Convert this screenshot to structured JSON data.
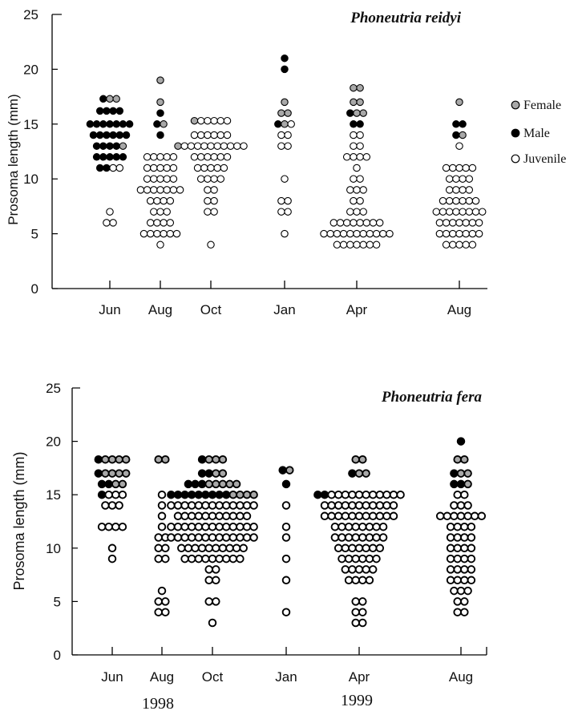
{
  "colors": {
    "female": "#a8a8a8",
    "male": "#000000",
    "juvenile": "#ffffff",
    "stroke": "#000000"
  },
  "legend": {
    "female": "Female",
    "male": "Male",
    "juvenile": "Juvenile"
  },
  "years": [
    "1998",
    "1999"
  ],
  "chart_data": [
    {
      "type": "scatter",
      "title": "Phoneutria reidyi",
      "ylabel": "Prosoma length (mm)",
      "ylim": [
        0,
        25
      ],
      "yticks": [
        0,
        5,
        10,
        15,
        20,
        25
      ],
      "categories": [
        "Jun",
        "Aug",
        "Oct",
        "Jan",
        "Apr",
        "Aug"
      ],
      "legend_position": "right",
      "groups": [
        {
          "category": "Jun",
          "rows": [
            {
              "y": 17.3,
              "f": 2,
              "m": 1,
              "j": 0
            },
            {
              "y": 16.2,
              "f": 0,
              "m": 4,
              "j": 0
            },
            {
              "y": 15.0,
              "f": 0,
              "m": 7,
              "j": 0
            },
            {
              "y": 14.0,
              "f": 0,
              "m": 6,
              "j": 0
            },
            {
              "y": 13.0,
              "f": 1,
              "m": 4,
              "j": 0
            },
            {
              "y": 12.0,
              "f": 0,
              "m": 5,
              "j": 0
            },
            {
              "y": 11.0,
              "f": 0,
              "m": 2,
              "j": 2
            },
            {
              "y": 7.0,
              "f": 0,
              "m": 0,
              "j": 1
            },
            {
              "y": 6.0,
              "f": 0,
              "m": 0,
              "j": 2
            }
          ]
        },
        {
          "category": "Aug",
          "rows": [
            {
              "y": 19.0,
              "f": 1,
              "m": 0,
              "j": 0
            },
            {
              "y": 17.0,
              "f": 1,
              "m": 0,
              "j": 0
            },
            {
              "y": 16.0,
              "f": 0,
              "m": 1,
              "j": 0
            },
            {
              "y": 15.0,
              "f": 1,
              "m": 1,
              "j": 0
            },
            {
              "y": 14.0,
              "f": 0,
              "m": 1,
              "j": 0
            },
            {
              "y": 12.0,
              "f": 0,
              "m": 0,
              "j": 5
            },
            {
              "y": 11.0,
              "f": 0,
              "m": 0,
              "j": 5
            },
            {
              "y": 10.0,
              "f": 0,
              "m": 0,
              "j": 5
            },
            {
              "y": 9.0,
              "f": 0,
              "m": 0,
              "j": 7
            },
            {
              "y": 8.0,
              "f": 0,
              "m": 0,
              "j": 4
            },
            {
              "y": 7.0,
              "f": 0,
              "m": 0,
              "j": 3
            },
            {
              "y": 6.0,
              "f": 0,
              "m": 0,
              "j": 4
            },
            {
              "y": 5.0,
              "f": 0,
              "m": 0,
              "j": 6
            },
            {
              "y": 4.0,
              "f": 0,
              "m": 0,
              "j": 1
            }
          ]
        },
        {
          "category": "Oct",
          "rows": [
            {
              "y": 15.3,
              "f": 1,
              "m": 0,
              "j": 5
            },
            {
              "y": 14.0,
              "f": 0,
              "m": 0,
              "j": 6
            },
            {
              "y": 13.0,
              "f": 1,
              "m": 0,
              "j": 10
            },
            {
              "y": 12.0,
              "f": 0,
              "m": 0,
              "j": 6
            },
            {
              "y": 11.0,
              "f": 0,
              "m": 0,
              "j": 5
            },
            {
              "y": 10.0,
              "f": 0,
              "m": 0,
              "j": 4
            },
            {
              "y": 9.0,
              "f": 0,
              "m": 0,
              "j": 2
            },
            {
              "y": 8.0,
              "f": 0,
              "m": 0,
              "j": 2
            },
            {
              "y": 7.0,
              "f": 0,
              "m": 0,
              "j": 2
            },
            {
              "y": 4.0,
              "f": 0,
              "m": 0,
              "j": 1
            }
          ]
        },
        {
          "category": "Jan",
          "rows": [
            {
              "y": 21.0,
              "f": 0,
              "m": 1,
              "j": 0
            },
            {
              "y": 20.0,
              "f": 0,
              "m": 1,
              "j": 0
            },
            {
              "y": 17.0,
              "f": 1,
              "m": 0,
              "j": 0
            },
            {
              "y": 16.0,
              "f": 2,
              "m": 0,
              "j": 0
            },
            {
              "y": 15.0,
              "f": 1,
              "m": 1,
              "j": 1
            },
            {
              "y": 14.0,
              "f": 0,
              "m": 0,
              "j": 2
            },
            {
              "y": 13.0,
              "f": 0,
              "m": 0,
              "j": 2
            },
            {
              "y": 10.0,
              "f": 0,
              "m": 0,
              "j": 1
            },
            {
              "y": 8.0,
              "f": 0,
              "m": 0,
              "j": 2
            },
            {
              "y": 7.0,
              "f": 0,
              "m": 0,
              "j": 2
            },
            {
              "y": 5.0,
              "f": 0,
              "m": 0,
              "j": 1
            }
          ]
        },
        {
          "category": "Apr",
          "rows": [
            {
              "y": 18.3,
              "f": 2,
              "m": 0,
              "j": 0
            },
            {
              "y": 17.0,
              "f": 2,
              "m": 0,
              "j": 0
            },
            {
              "y": 16.0,
              "f": 2,
              "m": 1,
              "j": 0
            },
            {
              "y": 15.0,
              "f": 0,
              "m": 2,
              "j": 0
            },
            {
              "y": 14.0,
              "f": 0,
              "m": 0,
              "j": 2
            },
            {
              "y": 13.0,
              "f": 0,
              "m": 0,
              "j": 2
            },
            {
              "y": 12.0,
              "f": 0,
              "m": 0,
              "j": 4
            },
            {
              "y": 11.0,
              "f": 0,
              "m": 0,
              "j": 1
            },
            {
              "y": 10.0,
              "f": 0,
              "m": 0,
              "j": 2
            },
            {
              "y": 9.0,
              "f": 0,
              "m": 0,
              "j": 3
            },
            {
              "y": 8.0,
              "f": 0,
              "m": 0,
              "j": 2
            },
            {
              "y": 7.0,
              "f": 0,
              "m": 0,
              "j": 3
            },
            {
              "y": 6.0,
              "f": 0,
              "m": 0,
              "j": 8
            },
            {
              "y": 5.0,
              "f": 0,
              "m": 0,
              "j": 11
            },
            {
              "y": 4.0,
              "f": 0,
              "m": 0,
              "j": 7
            }
          ]
        },
        {
          "category": "Aug",
          "rows": [
            {
              "y": 17.0,
              "f": 1,
              "m": 0,
              "j": 0
            },
            {
              "y": 15.0,
              "f": 0,
              "m": 2,
              "j": 0
            },
            {
              "y": 14.0,
              "f": 1,
              "m": 1,
              "j": 0
            },
            {
              "y": 13.0,
              "f": 0,
              "m": 0,
              "j": 1
            },
            {
              "y": 11.0,
              "f": 0,
              "m": 0,
              "j": 5
            },
            {
              "y": 10.0,
              "f": 0,
              "m": 0,
              "j": 4
            },
            {
              "y": 9.0,
              "f": 0,
              "m": 0,
              "j": 4
            },
            {
              "y": 8.0,
              "f": 0,
              "m": 0,
              "j": 6
            },
            {
              "y": 7.0,
              "f": 0,
              "m": 0,
              "j": 8
            },
            {
              "y": 6.0,
              "f": 0,
              "m": 0,
              "j": 7
            },
            {
              "y": 5.0,
              "f": 0,
              "m": 0,
              "j": 7
            },
            {
              "y": 4.0,
              "f": 0,
              "m": 0,
              "j": 5
            }
          ]
        }
      ]
    },
    {
      "type": "scatter",
      "title": "Phoneutria fera",
      "ylabel": "Prosoma length (mm)",
      "ylim": [
        0,
        25
      ],
      "yticks": [
        0,
        5,
        10,
        15,
        20,
        25
      ],
      "categories": [
        "Jun",
        "Aug",
        "Oct",
        "Jan",
        "Apr",
        "Aug"
      ],
      "groups": [
        {
          "category": "Jun",
          "rows": [
            {
              "y": 18.3,
              "f": 4,
              "m": 1,
              "j": 0
            },
            {
              "y": 17.0,
              "f": 4,
              "m": 1,
              "j": 0
            },
            {
              "y": 16.0,
              "f": 2,
              "m": 2,
              "j": 0
            },
            {
              "y": 15.0,
              "f": 0,
              "m": 1,
              "j": 3
            },
            {
              "y": 14.0,
              "f": 0,
              "m": 0,
              "j": 3
            },
            {
              "y": 12.0,
              "f": 0,
              "m": 0,
              "j": 4
            },
            {
              "y": 10.0,
              "f": 0,
              "m": 0,
              "j": 1
            },
            {
              "y": 9.0,
              "f": 0,
              "m": 0,
              "j": 1
            }
          ]
        },
        {
          "category": "Aug",
          "rows": [
            {
              "y": 18.3,
              "f": 2,
              "m": 0,
              "j": 0
            },
            {
              "y": 15.0,
              "f": 0,
              "m": 0,
              "j": 1
            },
            {
              "y": 14.0,
              "f": 0,
              "m": 0,
              "j": 1
            },
            {
              "y": 13.0,
              "f": 0,
              "m": 0,
              "j": 1
            },
            {
              "y": 12.0,
              "f": 0,
              "m": 0,
              "j": 1
            },
            {
              "y": 11.0,
              "f": 0,
              "m": 0,
              "j": 2
            },
            {
              "y": 10.0,
              "f": 0,
              "m": 0,
              "j": 2
            },
            {
              "y": 9.0,
              "f": 0,
              "m": 0,
              "j": 2
            },
            {
              "y": 6.0,
              "f": 0,
              "m": 0,
              "j": 1
            },
            {
              "y": 5.0,
              "f": 0,
              "m": 0,
              "j": 2
            },
            {
              "y": 4.0,
              "f": 0,
              "m": 0,
              "j": 2
            }
          ]
        },
        {
          "category": "Oct",
          "rows": [
            {
              "y": 18.3,
              "f": 3,
              "m": 1,
              "j": 0
            },
            {
              "y": 17.0,
              "f": 2,
              "m": 2,
              "j": 0
            },
            {
              "y": 16.0,
              "f": 5,
              "m": 3,
              "j": 0
            },
            {
              "y": 15.0,
              "f": 4,
              "m": 9,
              "j": 0
            },
            {
              "y": 14.0,
              "f": 0,
              "m": 0,
              "j": 13
            },
            {
              "y": 13.0,
              "f": 0,
              "m": 0,
              "j": 11
            },
            {
              "y": 12.0,
              "f": 0,
              "m": 0,
              "j": 13
            },
            {
              "y": 11.0,
              "f": 0,
              "m": 0,
              "j": 13
            },
            {
              "y": 10.0,
              "f": 0,
              "m": 0,
              "j": 10
            },
            {
              "y": 9.0,
              "f": 0,
              "m": 0,
              "j": 9
            },
            {
              "y": 8.0,
              "f": 0,
              "m": 0,
              "j": 2
            },
            {
              "y": 7.0,
              "f": 0,
              "m": 0,
              "j": 2
            },
            {
              "y": 5.0,
              "f": 0,
              "m": 0,
              "j": 2
            },
            {
              "y": 3.0,
              "f": 0,
              "m": 0,
              "j": 1
            }
          ]
        },
        {
          "category": "Jan",
          "rows": [
            {
              "y": 17.3,
              "f": 1,
              "m": 1,
              "j": 0
            },
            {
              "y": 16.0,
              "f": 0,
              "m": 1,
              "j": 0
            },
            {
              "y": 14.0,
              "f": 0,
              "m": 0,
              "j": 1
            },
            {
              "y": 12.0,
              "f": 0,
              "m": 0,
              "j": 1
            },
            {
              "y": 11.0,
              "f": 0,
              "m": 0,
              "j": 1
            },
            {
              "y": 9.0,
              "f": 0,
              "m": 0,
              "j": 1
            },
            {
              "y": 7.0,
              "f": 0,
              "m": 0,
              "j": 1
            },
            {
              "y": 4.0,
              "f": 0,
              "m": 0,
              "j": 1
            }
          ]
        },
        {
          "category": "Apr",
          "rows": [
            {
              "y": 18.3,
              "f": 2,
              "m": 0,
              "j": 0
            },
            {
              "y": 17.0,
              "f": 2,
              "m": 1,
              "j": 0
            },
            {
              "y": 15.0,
              "f": 0,
              "m": 2,
              "j": 11
            },
            {
              "y": 14.0,
              "f": 0,
              "m": 0,
              "j": 11
            },
            {
              "y": 13.0,
              "f": 0,
              "m": 0,
              "j": 11
            },
            {
              "y": 12.0,
              "f": 0,
              "m": 0,
              "j": 8
            },
            {
              "y": 11.0,
              "f": 0,
              "m": 0,
              "j": 8
            },
            {
              "y": 10.0,
              "f": 0,
              "m": 0,
              "j": 7
            },
            {
              "y": 9.0,
              "f": 0,
              "m": 0,
              "j": 6
            },
            {
              "y": 8.0,
              "f": 0,
              "m": 0,
              "j": 5
            },
            {
              "y": 7.0,
              "f": 0,
              "m": 0,
              "j": 4
            },
            {
              "y": 5.0,
              "f": 0,
              "m": 0,
              "j": 2
            },
            {
              "y": 4.0,
              "f": 0,
              "m": 0,
              "j": 2
            },
            {
              "y": 3.0,
              "f": 0,
              "m": 0,
              "j": 2
            }
          ]
        },
        {
          "category": "Aug",
          "rows": [
            {
              "y": 20.0,
              "f": 0,
              "m": 1,
              "j": 0
            },
            {
              "y": 18.3,
              "f": 2,
              "m": 0,
              "j": 0
            },
            {
              "y": 17.0,
              "f": 2,
              "m": 1,
              "j": 0
            },
            {
              "y": 16.0,
              "f": 1,
              "m": 2,
              "j": 0
            },
            {
              "y": 15.0,
              "f": 0,
              "m": 0,
              "j": 2
            },
            {
              "y": 14.0,
              "f": 0,
              "m": 0,
              "j": 3
            },
            {
              "y": 13.0,
              "f": 0,
              "m": 0,
              "j": 7
            },
            {
              "y": 12.0,
              "f": 0,
              "m": 0,
              "j": 4
            },
            {
              "y": 11.0,
              "f": 0,
              "m": 0,
              "j": 4
            },
            {
              "y": 10.0,
              "f": 0,
              "m": 0,
              "j": 4
            },
            {
              "y": 9.0,
              "f": 0,
              "m": 0,
              "j": 4
            },
            {
              "y": 8.0,
              "f": 0,
              "m": 0,
              "j": 4
            },
            {
              "y": 7.0,
              "f": 0,
              "m": 0,
              "j": 4
            },
            {
              "y": 6.0,
              "f": 0,
              "m": 0,
              "j": 3
            },
            {
              "y": 5.0,
              "f": 0,
              "m": 0,
              "j": 2
            },
            {
              "y": 4.0,
              "f": 0,
              "m": 0,
              "j": 2
            }
          ]
        }
      ]
    }
  ]
}
